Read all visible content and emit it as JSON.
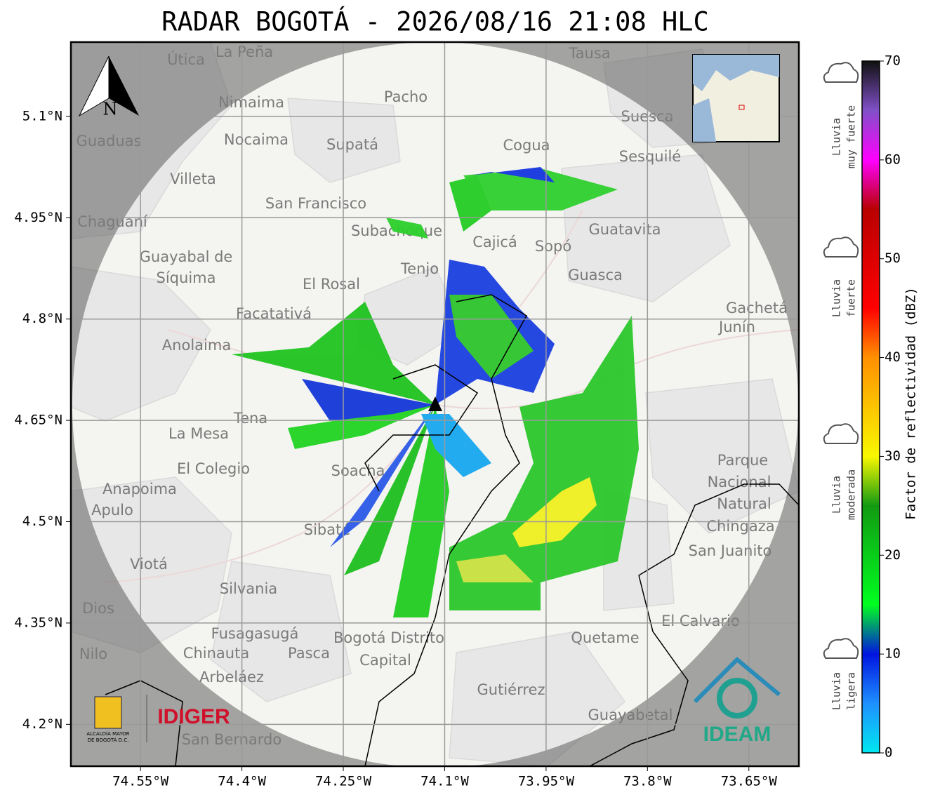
{
  "title": "RADAR BOGOTÁ - 2026/08/16 21:08 HLC",
  "map": {
    "xlim": [
      -74.653,
      -73.576
    ],
    "ylim": [
      4.138,
      5.21
    ],
    "xticks": [
      {
        "value": -74.55,
        "label": "74.55°W"
      },
      {
        "value": -74.4,
        "label": "74.4°W"
      },
      {
        "value": -74.25,
        "label": "74.25°W"
      },
      {
        "value": -74.1,
        "label": "74.1°W"
      },
      {
        "value": -73.95,
        "label": "73.95°W"
      },
      {
        "value": -73.8,
        "label": "73.8°W"
      },
      {
        "value": -73.65,
        "label": "73.65°W"
      }
    ],
    "yticks": [
      {
        "value": 5.1,
        "label": "5.1°N"
      },
      {
        "value": 4.95,
        "label": "4.95°N"
      },
      {
        "value": 4.8,
        "label": "4.8°N"
      },
      {
        "value": 4.65,
        "label": "4.65°N"
      },
      {
        "value": 4.5,
        "label": "4.5°N"
      },
      {
        "value": 4.35,
        "label": "4.35°N"
      },
      {
        "value": 4.2,
        "label": "4.2°N"
      }
    ],
    "grid": true,
    "north": "N",
    "places": [
      "La Peña",
      "Útica",
      "Tausa",
      "Pacho",
      "Nimaima",
      "Nocaima",
      "Supatá",
      "Guaduas",
      "Cogua",
      "Suesca",
      "Sesquilé",
      "Villeta",
      "San Francisco",
      "Chaguaní",
      "Subachoque",
      "Cajicá",
      "Sopó",
      "Guatavita",
      "Guayabal de",
      "Síquima",
      "Tenjo",
      "El Rosal",
      "Guasca",
      "Facatativá",
      "Gachetá",
      "Junín",
      "Anolaima",
      "Tena",
      "La Mesa",
      "El Colegio",
      "Soacha",
      "Anapoima",
      "Apulo",
      "Parque",
      "Nacional",
      "Natural",
      "Chingaza",
      "Sibaté",
      "San Juanito",
      "Viotá",
      "Silvania",
      "El Calvario",
      "Fusagasugá",
      "Pasca",
      "Bogotá Distrito",
      "Capital",
      "Chinauta",
      "Arbeláez",
      "Quetame",
      "Nilo",
      "Gutiérrez",
      "Guayabetal",
      "San Bernardo",
      "Dios"
    ],
    "logos": {
      "alcaldia": [
        "ALCALDÍA MAYOR",
        "DE BOGOTÁ D.C."
      ],
      "idiger": "IDIGER",
      "ideam": "IDEAM"
    }
  },
  "colorbar": {
    "label": "Factor de reflectividad (dBZ)",
    "lim": [
      0,
      70
    ],
    "ticks": [
      0,
      10,
      20,
      30,
      40,
      50,
      60,
      70
    ],
    "colorscale": [
      {
        "value": 0,
        "color": "#00e8f0"
      },
      {
        "value": 5,
        "color": "#1e90ff"
      },
      {
        "value": 10,
        "color": "#0014e0"
      },
      {
        "value": 15,
        "color": "#00ff20"
      },
      {
        "value": 25,
        "color": "#129a12"
      },
      {
        "value": 30,
        "color": "#f8f800"
      },
      {
        "value": 40,
        "color": "#ff9000"
      },
      {
        "value": 45,
        "color": "#ff0000"
      },
      {
        "value": 55,
        "color": "#b80000"
      },
      {
        "value": 60,
        "color": "#ff00ff"
      },
      {
        "value": 65,
        "color": "#8050c8"
      },
      {
        "value": 70,
        "color": "#101010"
      }
    ],
    "legend": [
      [
        "Lluvia",
        "muy fuerte"
      ],
      [
        "Lluvia",
        "fuerte"
      ],
      [
        "Lluvia",
        "moderada"
      ],
      [
        "Lluvia",
        "ligera"
      ]
    ]
  }
}
